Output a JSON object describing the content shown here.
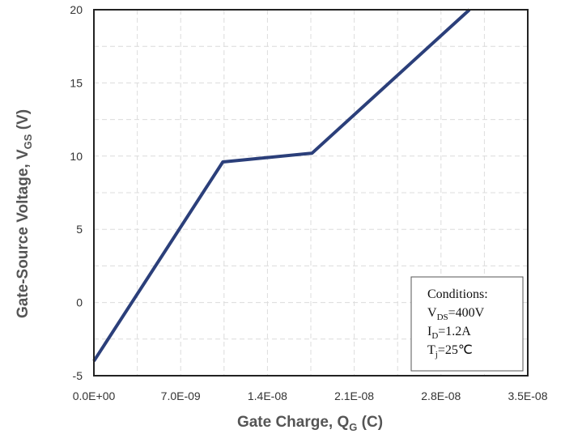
{
  "chart_data": {
    "type": "line",
    "title": "",
    "xlabel": {
      "main": "Gate Charge, Q",
      "sub": "G",
      "tail": " (C)"
    },
    "ylabel": {
      "main": "Gate-Source Voltage, V",
      "sub": "GS",
      "tail": " (V)"
    },
    "xlim": [
      0,
      3.5e-08
    ],
    "ylim": [
      -5,
      20
    ],
    "x_ticks": [
      {
        "value": 0,
        "label": "0.0E+00"
      },
      {
        "value": 7e-09,
        "label": "7.0E-09"
      },
      {
        "value": 1.4e-08,
        "label": "1.4E-08"
      },
      {
        "value": 2.1e-08,
        "label": "2.1E-08"
      },
      {
        "value": 2.8e-08,
        "label": "2.8E-08"
      },
      {
        "value": 3.5e-08,
        "label": "3.5E-08"
      }
    ],
    "y_ticks": [
      {
        "value": -5,
        "label": "-5"
      },
      {
        "value": 0,
        "label": "0"
      },
      {
        "value": 5,
        "label": "5"
      },
      {
        "value": 10,
        "label": "10"
      },
      {
        "value": 15,
        "label": "15"
      },
      {
        "value": 20,
        "label": "20"
      }
    ],
    "grid": true,
    "series": [
      {
        "color": "#2b3f7a",
        "points": [
          {
            "x": 0,
            "y": -4.0
          },
          {
            "x": 1.04e-08,
            "y": 9.6
          },
          {
            "x": 1.76e-08,
            "y": 10.2
          },
          {
            "x": 3.03e-08,
            "y": 20.0
          }
        ]
      }
    ],
    "annotation": {
      "title": "Conditions:",
      "lines": [
        {
          "main": "V",
          "sub": "DS",
          "tail": "=400V"
        },
        {
          "main": "I",
          "sub": "D",
          "tail": "=1.2A"
        },
        {
          "main": "T",
          "sub": "j",
          "tail": "=25℃"
        }
      ]
    }
  }
}
